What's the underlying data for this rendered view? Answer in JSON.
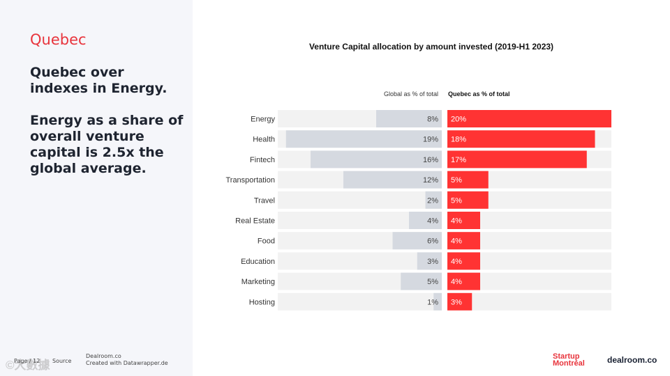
{
  "sidebar": {
    "region": "Quebec",
    "headline_1": "Quebec over indexes in Energy.",
    "headline_2": "Energy as a share of overall venture capital is 2.5x the global average."
  },
  "footer": {
    "page": "Page / 12",
    "source_label": "Source",
    "source_line_1": "Dealroom.co",
    "source_line_2": "Created with Datawrapper.de"
  },
  "watermark": "©大數據",
  "logos": {
    "startup_line_1": "Startup",
    "startup_line_2": "Montréal",
    "dealroom": "dealroom.co"
  },
  "colors": {
    "quebec_bar": "#ff3333",
    "global_bar": "#d5d9e0",
    "bar_track": "#f2f2f2",
    "accent": "#e8343c"
  },
  "chart_data": {
    "type": "bar",
    "title": "Venture Capital allocation by amount invested (2019-H1 2023)",
    "categories": [
      "Energy",
      "Health",
      "Fintech",
      "Transportation",
      "Travel",
      "Real Estate",
      "Food",
      "Education",
      "Marketing",
      "Hosting"
    ],
    "series": [
      {
        "name": "Global as % of total",
        "values": [
          8,
          19,
          16,
          12,
          2,
          4,
          6,
          3,
          5,
          1
        ],
        "labels": [
          "8%",
          "19%",
          "16%",
          "12%",
          "2%",
          "4%",
          "6%",
          "3%",
          "5%",
          "1%"
        ]
      },
      {
        "name": "Quebec as % of total",
        "values": [
          20,
          18,
          17,
          5,
          5,
          4,
          4,
          4,
          4,
          3
        ],
        "labels": [
          "20%",
          "18%",
          "17%",
          "5%",
          "5%",
          "4%",
          "4%",
          "4%",
          "4%",
          "3%"
        ]
      }
    ],
    "xlim": [
      0,
      20
    ],
    "grid": false,
    "legend": "top"
  }
}
